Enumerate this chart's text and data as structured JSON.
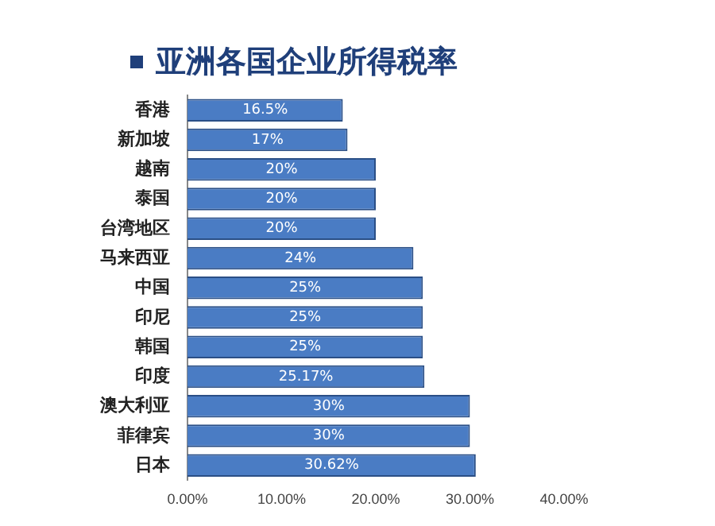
{
  "chart_data": {
    "type": "bar",
    "orientation": "horizontal",
    "title": "亚洲各国企业所得税率",
    "categories": [
      "香港",
      "新加坡",
      "越南",
      "泰国",
      "台湾地区",
      "马来西亚",
      "中国",
      "印尼",
      "韩国",
      "印度",
      "澳大利亚",
      "菲律宾",
      "日本"
    ],
    "values": [
      16.5,
      17,
      20,
      20,
      20,
      24,
      25,
      25,
      25,
      25.17,
      30,
      30,
      30.62
    ],
    "value_labels": [
      "16.5%",
      "17%",
      "20%",
      "20%",
      "20%",
      "24%",
      "25%",
      "25%",
      "25%",
      "25.17%",
      "30%",
      "30%",
      "30.62%"
    ],
    "color": "#4a7cc4",
    "xlim": [
      0,
      40
    ],
    "xticks": [
      {
        "value": 0,
        "label": "0.00%"
      },
      {
        "value": 10,
        "label": "10.00%"
      },
      {
        "value": 20,
        "label": "20.00%"
      },
      {
        "value": 30,
        "label": "30.00%"
      },
      {
        "value": 40,
        "label": "40.00%"
      }
    ]
  }
}
